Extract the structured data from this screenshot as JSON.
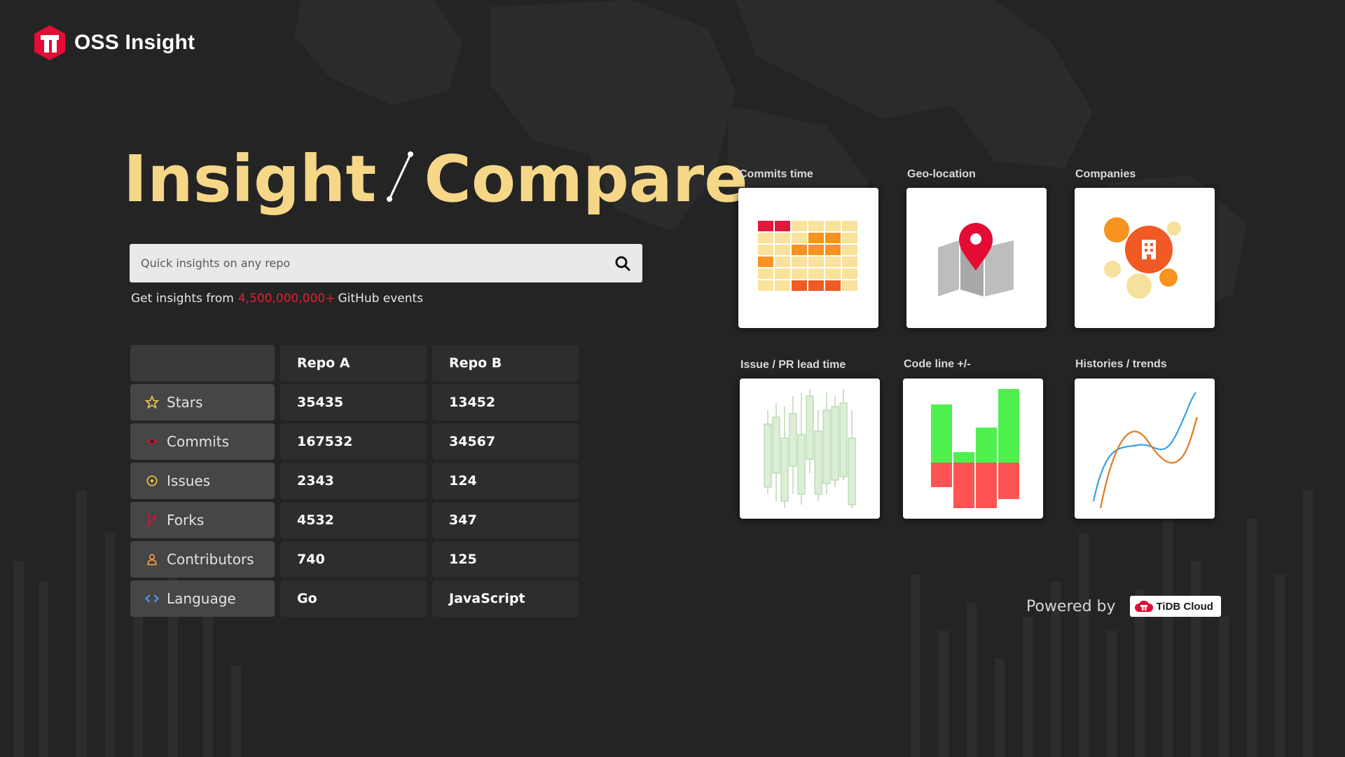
{
  "brand": {
    "name": "OSS Insight",
    "logo_icon": "tidb-logo-icon",
    "color": "#e30c34"
  },
  "hero": {
    "word_left": "Insight",
    "word_right": "Compare",
    "color": "#f6d788"
  },
  "search": {
    "placeholder": "Quick insights on any repo",
    "icon": "search-icon"
  },
  "tagline": {
    "prefix": "Get insights from",
    "count": "4,500,000,000+",
    "suffix": "GitHub events",
    "count_color": "#e0202f"
  },
  "table": {
    "columns": [
      "Repo A",
      "Repo B"
    ],
    "rows": [
      {
        "label": "Stars",
        "icon": "star-icon",
        "a": "35435",
        "b": "13452"
      },
      {
        "label": "Commits",
        "icon": "commit-icon",
        "a": "167532",
        "b": "34567"
      },
      {
        "label": "Issues",
        "icon": "issue-icon",
        "a": "2343",
        "b": "124"
      },
      {
        "label": "Forks",
        "icon": "fork-icon",
        "a": "4532",
        "b": "347"
      },
      {
        "label": "Contributors",
        "icon": "contributor-icon",
        "a": "740",
        "b": "125"
      },
      {
        "label": "Language",
        "icon": "code-icon",
        "a": "Go",
        "b": "JavaScript"
      }
    ]
  },
  "features": [
    {
      "label": "Commits time",
      "icon": "heatmap-icon"
    },
    {
      "label": "Geo-location",
      "icon": "map-pin-icon"
    },
    {
      "label": "Companies",
      "icon": "companies-bubble-icon"
    },
    {
      "label": "Issue / PR lead time",
      "icon": "candlestick-icon"
    },
    {
      "label": "Code  line +/-",
      "icon": "code-lines-bar-icon"
    },
    {
      "label": "Histories / trends",
      "icon": "trend-lines-icon"
    }
  ],
  "footer": {
    "powered_by": "Powered by",
    "partner": "TiDB Cloud"
  }
}
